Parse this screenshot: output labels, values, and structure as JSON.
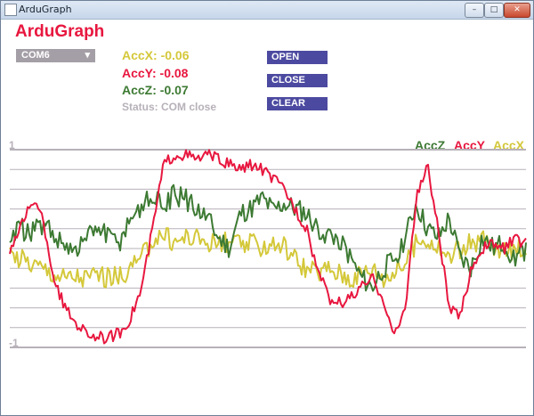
{
  "window": {
    "title": "ArduGraph",
    "controls": {
      "minimize": "–",
      "maximize": "□",
      "close": "✕"
    }
  },
  "app": {
    "title": "ArduGraph"
  },
  "port_select": {
    "value": "COM6",
    "caret": "▾"
  },
  "readings": {
    "accx": "AccX: -0.06",
    "accy": "AccY: -0.08",
    "accz": "AccZ: -0.07",
    "status": "Status: COM close"
  },
  "buttons": {
    "open": "OPEN",
    "close": "CLOSE",
    "clear": "CLEAR"
  },
  "legend": {
    "accz": "AccZ",
    "accy": "AccY",
    "accx": "AccX"
  },
  "axis": {
    "max_label": "1",
    "min_label": "-1"
  },
  "colors": {
    "accx": "#d4c83a",
    "accy": "#e8173f",
    "accz": "#3d7a33",
    "grid": "#b7b1b9",
    "button": "#4c4aa0"
  },
  "chart_data": {
    "type": "line",
    "ylim": [
      -1,
      1
    ],
    "series": [
      {
        "name": "AccZ",
        "values": [
          0.1,
          0.2,
          0.15,
          0.25,
          0.12,
          0.05,
          -0.05,
          0.1,
          0.2,
          0.1,
          0.05,
          0.3,
          0.45,
          0.5,
          0.42,
          0.55,
          0.5,
          0.4,
          0.3,
          0.1,
          0.0,
          0.35,
          0.4,
          0.5,
          0.38,
          0.45,
          0.4,
          0.35,
          0.2,
          0.15,
          0.1,
          -0.1,
          -0.3,
          -0.4,
          -0.2,
          -0.1,
          0.1,
          0.45,
          0.2,
          0.1,
          0.3,
          -0.1,
          -0.2,
          0.1,
          0.0,
          0.05,
          -0.1,
          0.0
        ]
      },
      {
        "name": "AccY",
        "values": [
          0.0,
          0.2,
          0.5,
          0.3,
          -0.3,
          -0.6,
          -0.75,
          -0.85,
          -0.9,
          -0.9,
          -0.85,
          -0.7,
          -0.4,
          0.2,
          0.85,
          0.95,
          0.95,
          0.9,
          0.95,
          0.9,
          0.85,
          0.8,
          0.85,
          0.8,
          0.7,
          0.6,
          0.4,
          0.2,
          -0.2,
          -0.5,
          -0.55,
          -0.5,
          -0.4,
          -0.3,
          -0.5,
          -0.9,
          -0.6,
          0.5,
          0.85,
          0.2,
          -0.6,
          -0.7,
          -0.2,
          0.0,
          0.05,
          0.0,
          0.1,
          0.05
        ]
      },
      {
        "name": "AccX",
        "values": [
          -0.05,
          -0.1,
          -0.15,
          -0.2,
          -0.25,
          -0.3,
          -0.28,
          -0.3,
          -0.25,
          -0.3,
          -0.28,
          -0.2,
          -0.1,
          0.1,
          0.15,
          0.05,
          0.12,
          0.1,
          0.08,
          0.05,
          0.06,
          0.03,
          0.04,
          0.02,
          0.05,
          0.03,
          -0.1,
          -0.2,
          -0.25,
          -0.2,
          -0.25,
          -0.3,
          -0.25,
          -0.2,
          -0.3,
          -0.25,
          -0.15,
          0.05,
          0.1,
          0.0,
          -0.1,
          0.0,
          0.05,
          0.1,
          0.0,
          -0.05,
          0.0,
          0.02
        ]
      }
    ]
  }
}
